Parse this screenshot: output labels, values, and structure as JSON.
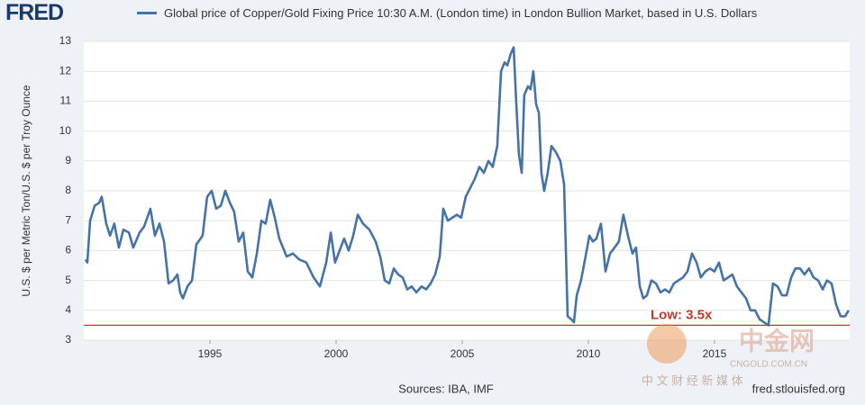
{
  "logo": "FRED",
  "chart_data": {
    "type": "line",
    "y_label": "U.S. $ per Metric Ton/U.S. $ per Troy Ounce",
    "source": "Sources: IBA, IMF",
    "site": "fred.stlouisfed.org",
    "grid": true,
    "xlim": [
      1990,
      2020.36
    ],
    "xticks": [
      1995,
      2000,
      2005,
      2010,
      2015
    ],
    "ylim": [
      3,
      13
    ],
    "yticks": [
      3,
      4,
      5,
      6,
      7,
      8,
      9,
      10,
      11,
      12,
      13
    ],
    "reference_line": {
      "value": 3.5,
      "label": "Low: 3.5x",
      "color": "#c0392b"
    },
    "series": [
      {
        "name": "Global price of Copper/Gold Fixing Price 10:30 A.M. (London time) in London Bullion Market, based in U.S. Dollars",
        "color": "#4572a7",
        "x": [
          1990.07,
          1990.14,
          1990.25,
          1990.43,
          1990.61,
          1990.71,
          1990.89,
          1991.04,
          1991.21,
          1991.39,
          1991.57,
          1991.79,
          1991.96,
          1992.21,
          1992.39,
          1992.64,
          1992.82,
          1993.0,
          1993.18,
          1993.36,
          1993.54,
          1993.71,
          1993.82,
          1993.93,
          1994.11,
          1994.29,
          1994.46,
          1994.71,
          1994.89,
          1995.07,
          1995.25,
          1995.43,
          1995.61,
          1995.79,
          1995.96,
          1996.14,
          1996.32,
          1996.5,
          1996.68,
          1996.86,
          1997.04,
          1997.21,
          1997.39,
          1997.57,
          1997.75,
          1998.04,
          1998.29,
          1998.54,
          1998.82,
          1999.11,
          1999.36,
          1999.61,
          1999.79,
          1999.96,
          2000.14,
          2000.32,
          2000.5,
          2000.68,
          2000.86,
          2001.07,
          2001.32,
          2001.57,
          2001.75,
          2001.93,
          2002.11,
          2002.29,
          2002.46,
          2002.64,
          2002.82,
          2003.0,
          2003.18,
          2003.39,
          2003.57,
          2003.75,
          2003.93,
          2004.11,
          2004.25,
          2004.43,
          2004.61,
          2004.79,
          2004.96,
          2005.14,
          2005.32,
          2005.5,
          2005.68,
          2005.86,
          2006.04,
          2006.21,
          2006.39,
          2006.54,
          2006.68,
          2006.79,
          2006.93,
          2007.04,
          2007.14,
          2007.25,
          2007.36,
          2007.46,
          2007.61,
          2007.71,
          2007.82,
          2007.93,
          2008.04,
          2008.14,
          2008.25,
          2008.39,
          2008.54,
          2008.71,
          2008.89,
          2009.04,
          2009.18,
          2009.32,
          2009.43,
          2009.54,
          2009.71,
          2009.89,
          2010.04,
          2010.18,
          2010.32,
          2010.5,
          2010.68,
          2010.86,
          2011.04,
          2011.21,
          2011.39,
          2011.57,
          2011.75,
          2011.89,
          2012.04,
          2012.18,
          2012.32,
          2012.5,
          2012.68,
          2012.86,
          2013.04,
          2013.21,
          2013.39,
          2013.57,
          2013.75,
          2013.93,
          2014.11,
          2014.29,
          2014.46,
          2014.64,
          2014.82,
          2015.0,
          2015.18,
          2015.36,
          2015.54,
          2015.71,
          2015.89,
          2016.07,
          2016.25,
          2016.43,
          2016.61,
          2016.79,
          2016.96,
          2017.14,
          2017.32,
          2017.5,
          2017.68,
          2017.86,
          2018.04,
          2018.21,
          2018.39,
          2018.57,
          2018.75,
          2018.93,
          2019.11,
          2019.29,
          2019.46,
          2019.64,
          2019.82,
          2020.0,
          2020.18,
          2020.32
        ],
        "values": [
          5.7,
          5.6,
          7.0,
          7.5,
          7.6,
          7.8,
          6.9,
          6.5,
          6.9,
          6.1,
          6.7,
          6.6,
          6.1,
          6.6,
          6.8,
          7.4,
          6.5,
          6.9,
          6.3,
          4.9,
          5.0,
          5.2,
          4.6,
          4.4,
          4.8,
          5.0,
          6.2,
          6.5,
          7.8,
          8.0,
          7.4,
          7.5,
          8.0,
          7.6,
          7.3,
          6.3,
          6.6,
          5.3,
          5.1,
          5.9,
          7.0,
          6.9,
          7.7,
          7.1,
          6.4,
          5.8,
          5.9,
          5.7,
          5.6,
          5.1,
          4.8,
          5.6,
          6.6,
          5.6,
          6.0,
          6.4,
          6.0,
          6.5,
          7.2,
          6.9,
          6.7,
          6.3,
          5.8,
          5.0,
          4.9,
          5.4,
          5.2,
          5.1,
          4.7,
          4.8,
          4.6,
          4.8,
          4.7,
          4.9,
          5.2,
          5.8,
          7.4,
          7.0,
          7.1,
          7.2,
          7.1,
          7.8,
          8.1,
          8.4,
          8.8,
          8.6,
          9.0,
          8.8,
          9.5,
          12.0,
          12.3,
          12.2,
          12.6,
          12.8,
          11.0,
          9.2,
          8.6,
          11.2,
          11.5,
          11.4,
          12.0,
          10.9,
          10.6,
          8.6,
          8.0,
          8.6,
          9.5,
          9.3,
          9.0,
          8.2,
          3.8,
          3.7,
          3.6,
          4.5,
          5.0,
          5.8,
          6.5,
          6.3,
          6.4,
          6.9,
          5.3,
          5.9,
          6.1,
          6.3,
          7.2,
          6.5,
          5.9,
          6.1,
          4.8,
          4.4,
          4.5,
          5.0,
          4.9,
          4.6,
          4.7,
          4.6,
          4.9,
          5.0,
          5.1,
          5.3,
          5.9,
          5.6,
          5.1,
          5.3,
          5.4,
          5.3,
          5.6,
          5.0,
          5.1,
          5.2,
          4.8,
          4.6,
          4.4,
          4.0,
          4.0,
          3.7,
          3.6,
          3.5,
          4.9,
          4.8,
          4.5,
          4.5,
          5.1,
          5.4,
          5.4,
          5.2,
          5.4,
          5.1,
          5.0,
          4.7,
          5.0,
          4.9,
          4.2,
          3.8,
          3.8,
          4.0
        ]
      }
    ]
  },
  "watermark": {
    "brand": "中金网",
    "domain": "CNGOLD.COM.CN",
    "tagline": "中 文 财 经 新 媒 体"
  }
}
